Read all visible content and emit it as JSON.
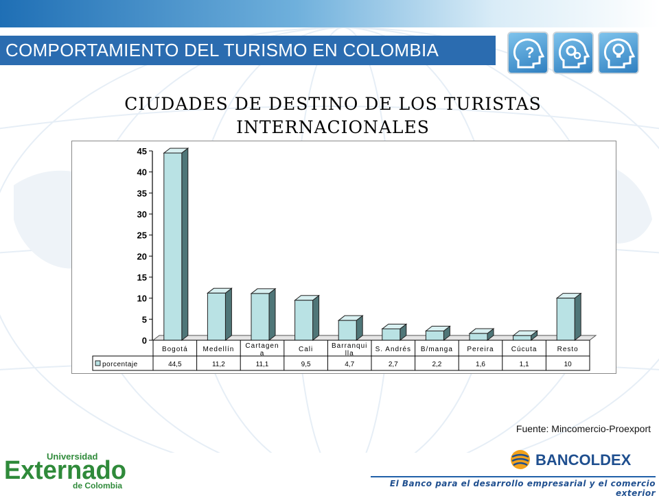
{
  "header": {
    "title": "COMPORTAMIENTO DEL TURISMO EN COLOMBIA",
    "icons": [
      "question-head-icon",
      "gears-head-icon",
      "lightbulb-head-icon"
    ]
  },
  "chart_data": {
    "type": "bar",
    "title_line1": "CIUDADES DE DESTINO DE LOS TURISTAS",
    "title_line2": "INTERNACIONALES",
    "categories": [
      [
        "Bogotá"
      ],
      [
        "Medellín"
      ],
      [
        "Cartagen",
        "a"
      ],
      [
        "Cali"
      ],
      [
        "Barranqui",
        "lla"
      ],
      [
        "S. Andrés"
      ],
      [
        "B/manga"
      ],
      [
        "Pereira"
      ],
      [
        "Cúcuta"
      ],
      [
        "Resto"
      ]
    ],
    "series": [
      {
        "name": "porcentaje",
        "values": [
          44.5,
          11.2,
          11.1,
          9.5,
          4.7,
          2.7,
          2.2,
          1.6,
          1.1,
          10
        ]
      }
    ],
    "value_labels": [
      "44,5",
      "11,2",
      "11,1",
      "9,5",
      "4,7",
      "2,7",
      "2,2",
      "1,6",
      "1,1",
      "10"
    ],
    "yticks": [
      "0",
      "5",
      "10",
      "15",
      "20",
      "25",
      "30",
      "35",
      "40",
      "45"
    ],
    "ylim": [
      0,
      45
    ],
    "grid": false,
    "legend": "data-table"
  },
  "footer": {
    "source": "Fuente: Mincomercio-Proexport",
    "left_logo": [
      "Universidad",
      "Externado",
      "de Colombia"
    ],
    "right_logo": "BANCOLDEX",
    "slogan": "El Banco para el desarrollo empresarial y el comercio exterior"
  },
  "colors": {
    "accent": "#2b6cb0",
    "bar_front": "#b9e2e4",
    "bar_side": "#4f7678",
    "bar_top": "#d8f0f1",
    "brand_green": "#2f8a3a"
  }
}
